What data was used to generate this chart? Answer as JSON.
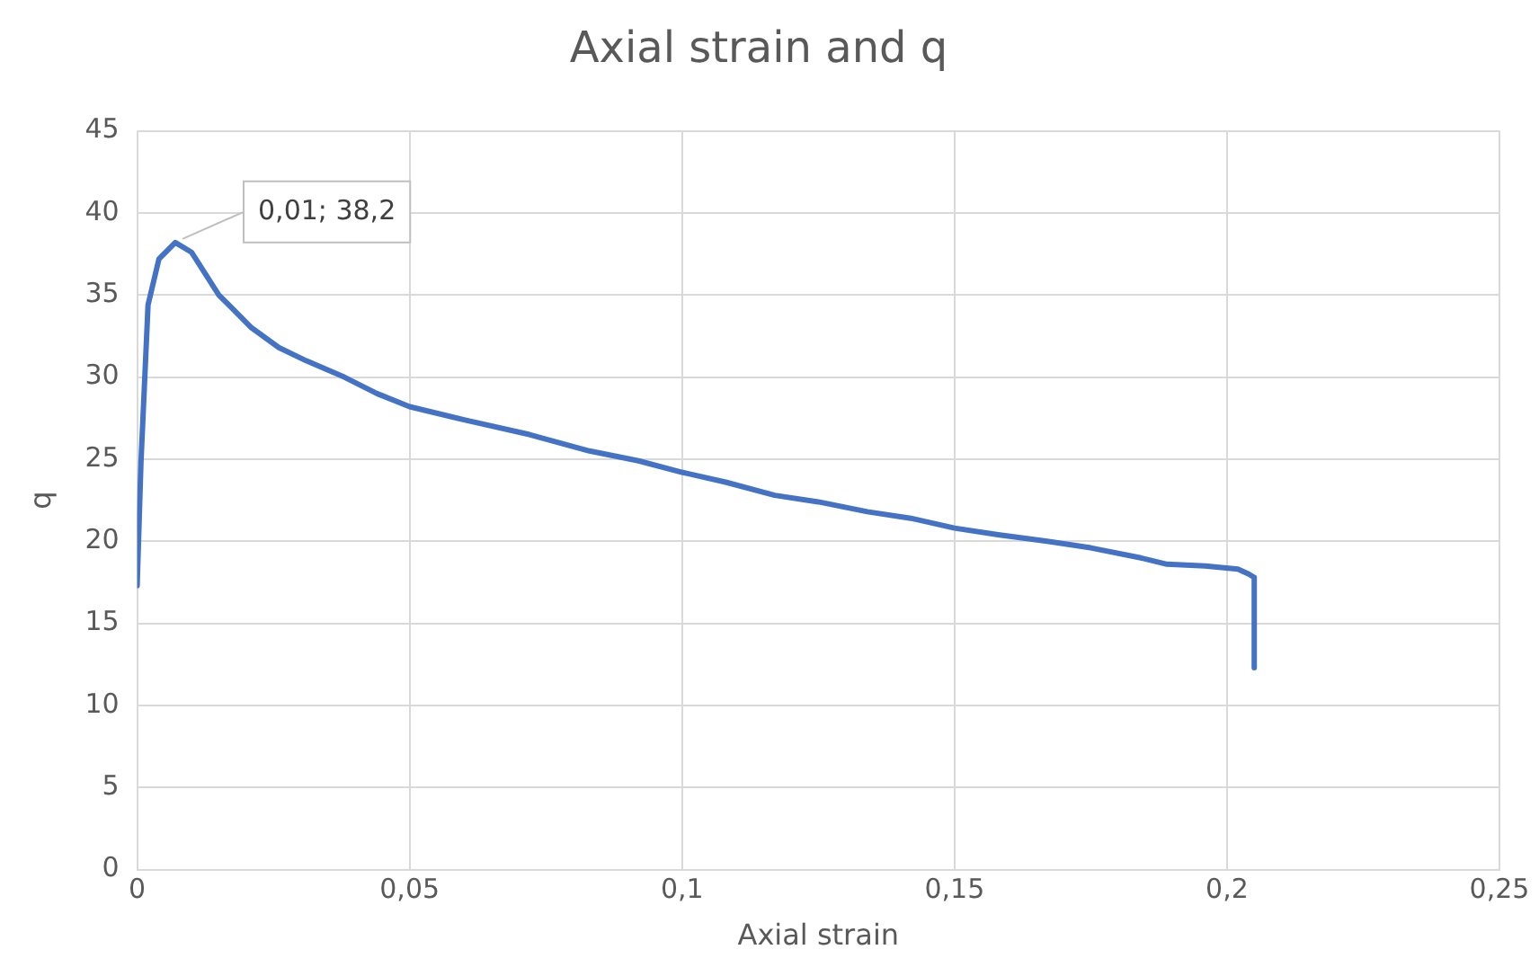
{
  "chart_data": {
    "type": "line",
    "title": "Axial strain and q",
    "xlabel": "Axial strain",
    "ylabel": "q",
    "series": [
      {
        "color": "#4472c4",
        "x": [
          0,
          0.0007,
          0.002,
          0.004,
          0.007,
          0.01,
          0.015,
          0.021,
          0.026,
          0.031,
          0.038,
          0.044,
          0.05,
          0.06,
          0.072,
          0.083,
          0.092,
          0.1,
          0.108,
          0.117,
          0.125,
          0.134,
          0.142,
          0.15,
          0.158,
          0.167,
          0.175,
          0.184,
          0.189,
          0.196,
          0.202,
          0.204,
          0.205,
          0.205
        ],
        "values": [
          17.3,
          24.8,
          34.4,
          37.2,
          38.2,
          37.6,
          35,
          33,
          31.8,
          31,
          30,
          29,
          28.2,
          27.4,
          26.5,
          25.5,
          24.9,
          24.2,
          23.6,
          22.8,
          22.4,
          21.8,
          21.4,
          20.8,
          20.4,
          20,
          19.6,
          19,
          18.6,
          18.5,
          18.3,
          18,
          17.8,
          12.3
        ]
      }
    ],
    "xlim": [
      0,
      0.25
    ],
    "xticks": [
      0,
      {
        "value": 0.05,
        "label": "0,05"
      },
      {
        "value": 0.1,
        "label": "0,1"
      },
      {
        "value": 0.15,
        "label": "0,15"
      },
      {
        "value": 0.2,
        "label": "0,2"
      },
      {
        "value": 0.25,
        "label": "0,25"
      }
    ],
    "ylim": [
      0,
      45
    ],
    "yticks": [
      0,
      5,
      10,
      15,
      20,
      25,
      30,
      35,
      40,
      45
    ],
    "grid": true,
    "legend": false,
    "marker": "none",
    "line_style": "solid",
    "annotations": [
      {
        "text": "0,01; 38,2",
        "x": 0.007,
        "y": 38.2
      }
    ]
  }
}
